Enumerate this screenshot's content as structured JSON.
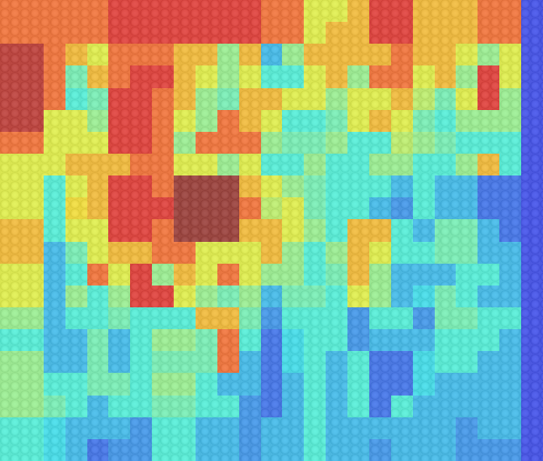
{
  "chart_data": {
    "type": "heatmap",
    "tick_labels": false,
    "cells": [
      [
        0.8,
        0.8,
        0.8,
        0.8,
        0.8,
        0.9,
        0.9,
        0.9,
        0.9,
        0.9,
        0.9,
        0.9,
        0.8,
        0.8,
        0.6,
        0.6,
        0.7,
        0.9,
        0.9,
        0.7,
        0.7,
        0.7,
        0.8,
        0.8,
        0.15
      ],
      [
        0.8,
        0.8,
        0.8,
        0.8,
        0.8,
        0.9,
        0.9,
        0.9,
        0.9,
        0.9,
        0.9,
        0.9,
        0.8,
        0.8,
        0.6,
        0.7,
        0.7,
        0.9,
        0.9,
        0.7,
        0.7,
        0.7,
        0.8,
        0.8,
        0.15
      ],
      [
        0.95,
        0.95,
        0.8,
        0.7,
        0.6,
        0.8,
        0.8,
        0.8,
        0.7,
        0.7,
        0.5,
        0.7,
        0.3,
        0.5,
        0.7,
        0.7,
        0.7,
        0.7,
        0.8,
        0.7,
        0.7,
        0.6,
        0.5,
        0.6,
        0.15
      ],
      [
        0.95,
        0.95,
        0.8,
        0.45,
        0.7,
        0.8,
        0.9,
        0.9,
        0.7,
        0.6,
        0.5,
        0.6,
        0.4,
        0.4,
        0.6,
        0.7,
        0.5,
        0.8,
        0.8,
        0.6,
        0.7,
        0.5,
        0.9,
        0.6,
        0.15
      ],
      [
        0.95,
        0.95,
        0.8,
        0.4,
        0.45,
        0.9,
        0.9,
        0.8,
        0.7,
        0.5,
        0.45,
        0.7,
        0.7,
        0.6,
        0.6,
        0.5,
        0.6,
        0.6,
        0.7,
        0.55,
        0.45,
        0.6,
        0.9,
        0.5,
        0.15
      ],
      [
        0.95,
        0.95,
        0.6,
        0.6,
        0.5,
        0.9,
        0.9,
        0.8,
        0.6,
        0.5,
        0.8,
        0.7,
        0.6,
        0.4,
        0.4,
        0.45,
        0.6,
        0.7,
        0.6,
        0.45,
        0.4,
        0.5,
        0.5,
        0.5,
        0.15
      ],
      [
        0.8,
        0.8,
        0.6,
        0.6,
        0.6,
        0.9,
        0.9,
        0.8,
        0.5,
        0.8,
        0.8,
        0.8,
        0.5,
        0.45,
        0.45,
        0.5,
        0.4,
        0.4,
        0.55,
        0.5,
        0.45,
        0.4,
        0.4,
        0.4,
        0.15
      ],
      [
        0.6,
        0.6,
        0.6,
        0.7,
        0.7,
        0.7,
        0.8,
        0.8,
        0.6,
        0.6,
        0.5,
        0.6,
        0.4,
        0.4,
        0.5,
        0.4,
        0.4,
        0.5,
        0.5,
        0.4,
        0.4,
        0.5,
        0.7,
        0.4,
        0.15
      ],
      [
        0.6,
        0.6,
        0.4,
        0.6,
        0.7,
        0.9,
        0.9,
        0.8,
        1.0,
        1.0,
        1.0,
        0.7,
        0.6,
        0.5,
        0.45,
        0.4,
        0.4,
        0.4,
        0.3,
        0.4,
        0.3,
        0.3,
        0.2,
        0.2,
        0.15
      ],
      [
        0.6,
        0.6,
        0.4,
        0.65,
        0.7,
        0.9,
        0.9,
        0.9,
        1.0,
        1.0,
        1.0,
        0.8,
        0.55,
        0.6,
        0.45,
        0.4,
        0.4,
        0.3,
        0.25,
        0.4,
        0.3,
        0.3,
        0.2,
        0.2,
        0.15
      ],
      [
        0.7,
        0.7,
        0.4,
        0.6,
        0.6,
        0.9,
        0.9,
        0.8,
        1.0,
        1.0,
        1.0,
        0.7,
        0.7,
        0.6,
        0.5,
        0.4,
        0.7,
        0.7,
        0.4,
        0.3,
        0.45,
        0.45,
        0.3,
        0.2,
        0.15
      ],
      [
        0.7,
        0.7,
        0.3,
        0.45,
        0.6,
        0.7,
        0.7,
        0.8,
        0.8,
        0.6,
        0.6,
        0.6,
        0.7,
        0.5,
        0.4,
        0.5,
        0.7,
        0.6,
        0.4,
        0.4,
        0.45,
        0.45,
        0.3,
        0.3,
        0.15
      ],
      [
        0.6,
        0.6,
        0.3,
        0.4,
        0.8,
        0.6,
        0.9,
        0.5,
        0.7,
        0.6,
        0.8,
        0.6,
        0.5,
        0.5,
        0.4,
        0.45,
        0.7,
        0.5,
        0.3,
        0.3,
        0.3,
        0.4,
        0.4,
        0.3,
        0.15
      ],
      [
        0.6,
        0.6,
        0.3,
        0.5,
        0.4,
        0.5,
        0.9,
        0.9,
        0.6,
        0.5,
        0.45,
        0.5,
        0.3,
        0.45,
        0.45,
        0.4,
        0.6,
        0.5,
        0.3,
        0.35,
        0.45,
        0.4,
        0.3,
        0.3,
        0.15
      ],
      [
        0.5,
        0.5,
        0.3,
        0.4,
        0.4,
        0.45,
        0.4,
        0.4,
        0.4,
        0.7,
        0.7,
        0.45,
        0.25,
        0.4,
        0.4,
        0.4,
        0.25,
        0.4,
        0.4,
        0.25,
        0.45,
        0.45,
        0.4,
        0.4,
        0.15
      ],
      [
        0.4,
        0.4,
        0.3,
        0.3,
        0.45,
        0.3,
        0.4,
        0.5,
        0.5,
        0.45,
        0.8,
        0.4,
        0.2,
        0.35,
        0.4,
        0.4,
        0.25,
        0.3,
        0.3,
        0.3,
        0.4,
        0.4,
        0.4,
        0.3,
        0.15
      ],
      [
        0.5,
        0.5,
        0.3,
        0.3,
        0.45,
        0.3,
        0.4,
        0.45,
        0.45,
        0.45,
        0.8,
        0.3,
        0.2,
        0.35,
        0.4,
        0.3,
        0.4,
        0.2,
        0.2,
        0.35,
        0.4,
        0.4,
        0.3,
        0.3,
        0.15
      ],
      [
        0.5,
        0.5,
        0.4,
        0.4,
        0.45,
        0.45,
        0.4,
        0.5,
        0.5,
        0.4,
        0.3,
        0.3,
        0.2,
        0.3,
        0.4,
        0.3,
        0.4,
        0.2,
        0.2,
        0.35,
        0.3,
        0.3,
        0.3,
        0.3,
        0.15
      ],
      [
        0.5,
        0.5,
        0.45,
        0.4,
        0.3,
        0.4,
        0.4,
        0.45,
        0.45,
        0.4,
        0.4,
        0.25,
        0.2,
        0.3,
        0.4,
        0.3,
        0.4,
        0.2,
        0.4,
        0.3,
        0.3,
        0.3,
        0.3,
        0.3,
        0.15
      ],
      [
        0.4,
        0.4,
        0.35,
        0.3,
        0.3,
        0.3,
        0.25,
        0.4,
        0.4,
        0.3,
        0.3,
        0.25,
        0.3,
        0.3,
        0.4,
        0.3,
        0.3,
        0.3,
        0.3,
        0.3,
        0.3,
        0.25,
        0.3,
        0.3,
        0.15
      ],
      [
        0.4,
        0.4,
        0.35,
        0.3,
        0.2,
        0.25,
        0.25,
        0.4,
        0.4,
        0.3,
        0.3,
        0.25,
        0.3,
        0.3,
        0.4,
        0.3,
        0.3,
        0.25,
        0.3,
        0.3,
        0.3,
        0.25,
        0.25,
        0.25,
        0.15
      ]
    ]
  }
}
